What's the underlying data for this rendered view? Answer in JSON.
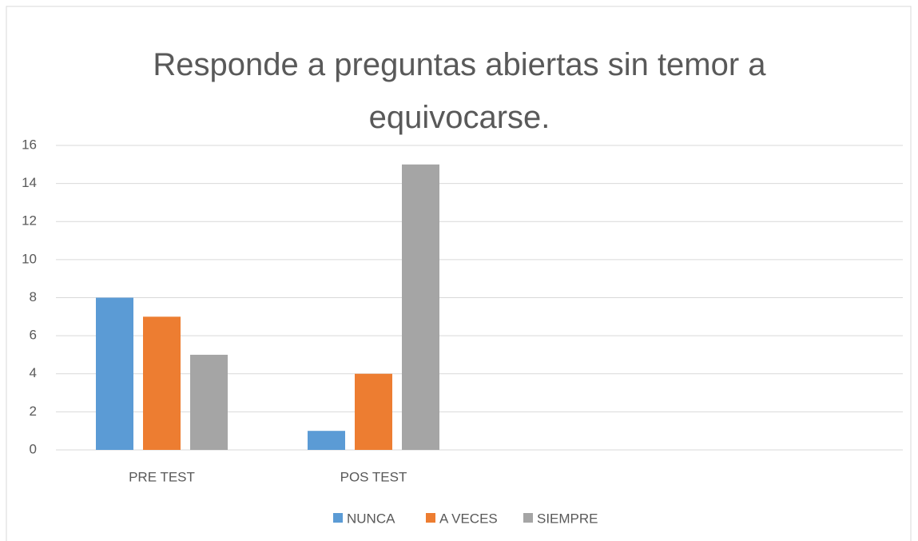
{
  "chart_data": {
    "type": "bar",
    "title": "Responde a preguntas abiertas sin temor a equivocarse.",
    "categories": [
      "PRE TEST",
      "POS TEST",
      null,
      null
    ],
    "series": [
      {
        "name": "NUNCA",
        "color": "#5b9bd5",
        "values": [
          8,
          1,
          null,
          null
        ]
      },
      {
        "name": "A VECES",
        "color": "#ed7d31",
        "values": [
          7,
          4,
          null,
          null
        ]
      },
      {
        "name": "SIEMPRE",
        "color": "#a5a5a5",
        "values": [
          5,
          15,
          null,
          null
        ]
      }
    ],
    "ylim": [
      0,
      16
    ],
    "yticks": [
      0,
      2,
      4,
      6,
      8,
      10,
      12,
      14,
      16
    ],
    "grid": true,
    "legend": "bottom"
  }
}
